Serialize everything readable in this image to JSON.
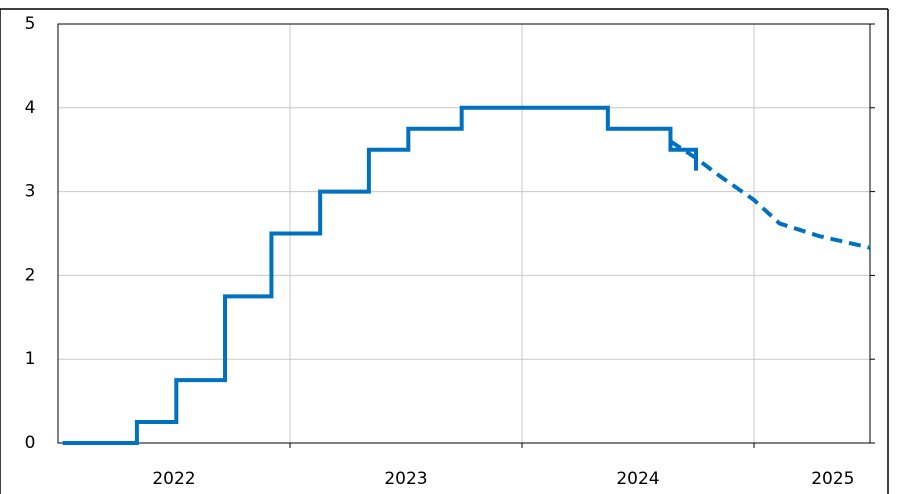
{
  "chart_data": {
    "type": "line",
    "xlim": [
      2022,
      2025.5
    ],
    "xticks": [
      {
        "value": 2022.5,
        "label": "2022"
      },
      {
        "value": 2023.5,
        "label": "2023"
      },
      {
        "value": 2024.5,
        "label": "2024"
      },
      {
        "value": 2025.34,
        "label": "2025"
      }
    ],
    "xgrid": [
      2023,
      2024,
      2025
    ],
    "ylim": [
      0,
      5
    ],
    "yticks": [
      0,
      1,
      2,
      3,
      4,
      5
    ],
    "grid": true,
    "series": [
      {
        "color": "#0070c0",
        "dash": false,
        "x": [
          2022.02,
          2022.34,
          2022.34,
          2022.51,
          2022.51,
          2022.72,
          2022.72,
          2022.92,
          2022.92,
          2023.13,
          2023.13,
          2023.34,
          2023.34,
          2023.51,
          2023.51,
          2023.74,
          2023.74,
          2024.37,
          2024.37,
          2024.64,
          2024.64,
          2024.75,
          2024.75
        ],
        "values": [
          0,
          0,
          0.25,
          0.25,
          0.75,
          0.75,
          1.75,
          1.75,
          2.5,
          2.5,
          3,
          3,
          3.5,
          3.5,
          3.75,
          3.75,
          4,
          4,
          3.75,
          3.75,
          3.5,
          3.5,
          3.25
        ]
      },
      {
        "color": "#0070c0",
        "dash": true,
        "x": [
          2024.64,
          2024.75,
          2024.85,
          2025.0,
          2025.11,
          2025.28,
          2025.39,
          2025.5
        ],
        "values": [
          3.6,
          3.4,
          3.19,
          2.9,
          2.62,
          2.47,
          2.4,
          2.33
        ]
      }
    ]
  }
}
